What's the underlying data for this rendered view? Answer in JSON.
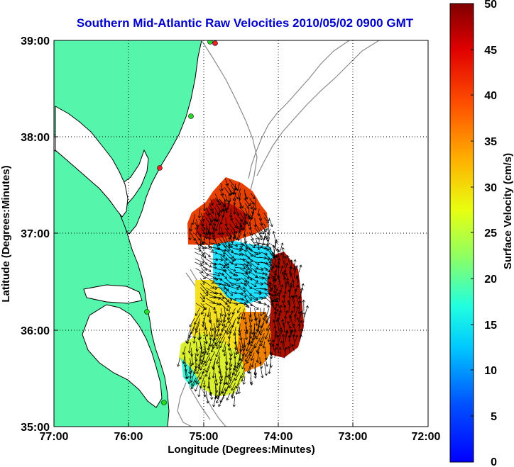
{
  "title": "Southern Mid-Atlantic Raw Velocities 2010/05/02 0900 GMT",
  "xlabel": "Longitude (Degrees:Minutes)",
  "ylabel": "Latitude (Degrees:Minutes)",
  "colorbar_label": "Surface Velocity (cm/s)",
  "x_ticks": [
    "77:00",
    "76:00",
    "75:00",
    "74:00",
    "73:00",
    "72:00"
  ],
  "y_ticks": [
    "39:00",
    "38:00",
    "37:00",
    "36:00",
    "35:00"
  ],
  "colorbar_ticks": [
    "0",
    "5",
    "10",
    "15",
    "20",
    "25",
    "30",
    "35",
    "40",
    "45",
    "50"
  ],
  "colors": {
    "title": "#0000cc",
    "land": "#55f5ac",
    "coast": "#000000",
    "bathymetry": "#8a8a8a",
    "arrows": "#000000",
    "stations_active": "#22dd22",
    "stations_inactive": "#ee2222"
  },
  "map": {
    "lon_range": [
      -77,
      -72
    ],
    "lat_range": [
      35,
      39
    ],
    "grid": true,
    "colorbar_range": [
      0,
      50
    ],
    "colormap": "jet"
  }
}
